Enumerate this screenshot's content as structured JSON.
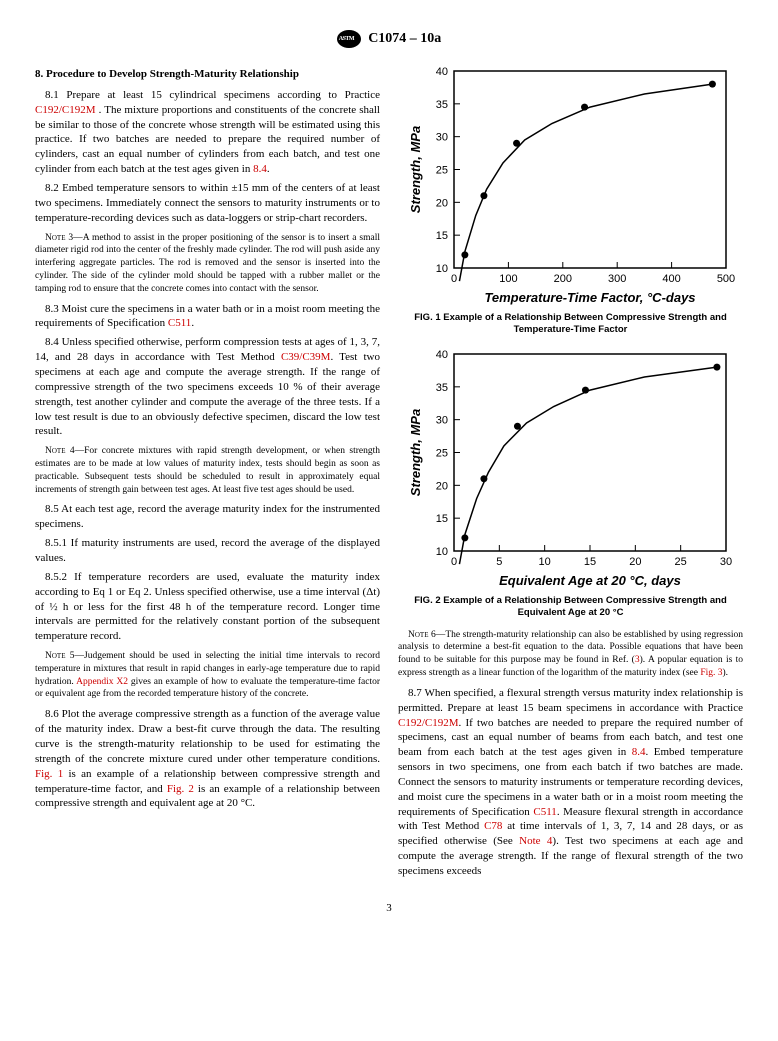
{
  "header": {
    "designation": "C1074 – 10a"
  },
  "left": {
    "section_title": "8.  Procedure to Develop Strength-Maturity Relationship",
    "p81a": "8.1 Prepare at least 15 cylindrical specimens according to Practice ",
    "p81_link": "C192/C192M",
    "p81b": " . The mixture proportions and constituents of the concrete shall be similar to those of the concrete whose strength will be estimated using this practice. If two batches are needed to prepare the required number of cylinders, cast an equal number of cylinders from each batch, and test one cylinder from each batch at the test ages given in ",
    "p81_link2": "8.4",
    "p81c": ".",
    "p82": "8.2 Embed temperature sensors to within ±15 mm of the centers of at least two specimens. Immediately connect the sensors to maturity instruments or to temperature-recording devices such as data-loggers or strip-chart recorders.",
    "note3_label": "Note 3—",
    "note3": "A method to assist in the proper positioning of the sensor is to insert a small diameter rigid rod into the center of the freshly made cylinder. The rod will push aside any interfering aggregate particles. The rod is removed and the sensor is inserted into the cylinder. The side of the cylinder mold should be tapped with a rubber mallet or the tamping rod to ensure that the concrete comes into contact with the sensor.",
    "p83a": "8.3 Moist cure the specimens in a water bath or in a moist room meeting the requirements of Specification ",
    "p83_link": "C511",
    "p83b": ".",
    "p84a": "8.4 Unless specified otherwise, perform compression tests at ages of 1, 3, 7, 14, and 28 days in accordance with Test Method ",
    "p84_link": "C39/C39M",
    "p84b": ". Test two specimens at each age and compute the average strength. If the range of compressive strength of the two specimens exceeds 10 % of their average strength, test another cylinder and compute the average of the three tests. If a low test result is due to an obviously defective specimen, discard the low test result.",
    "note4_label": "Note 4—",
    "note4": "For concrete mixtures with rapid strength development, or when strength estimates are to be made at low values of maturity index, tests should begin as soon as practicable. Subsequent tests should be scheduled to result in approximately equal increments of strength gain between test ages. At least five test ages should be used.",
    "p85": "8.5 At each test age, record the average maturity index for the instrumented specimens.",
    "p851": "8.5.1 If maturity instruments are used, record the average of the displayed values.",
    "p852": "8.5.2 If temperature recorders are used, evaluate the maturity index according to Eq 1 or Eq 2. Unless specified otherwise, use a time interval (Δt) of ½ h or less for the first 48 h of the temperature record. Longer time intervals are permitted for the relatively constant portion of the subsequent temperature record.",
    "note5_label": "Note 5—",
    "note5a": "Judgement should be used in selecting the initial time intervals to record temperature in mixtures that result in rapid changes in early-age temperature due to rapid hydration. ",
    "note5_link": "Appendix X2",
    "note5b": " gives an example of how to evaluate the temperature-time factor or equivalent age from the recorded temperature history of the concrete.",
    "p86a": "8.6 Plot the average compressive strength as a function of the average value of the maturity index. Draw a best-fit curve through the data. The resulting curve is the strength-maturity relationship to be used for estimating the strength of the concrete mixture cured under other temperature conditions. ",
    "p86_link1": "Fig. 1",
    "p86b": " is an example of a relationship between compressive strength and temperature-time factor, and ",
    "p86_link2": "Fig. 2",
    "p86c": " is an example of a relationship between compressive strength and equivalent age at 20 °C."
  },
  "fig1": {
    "type": "scatter-line",
    "xlabel": "Temperature-Time Factor, °C-days",
    "ylabel": "Strength, MPa",
    "xlim": [
      0,
      500
    ],
    "ylim": [
      10,
      40
    ],
    "xticks": [
      0,
      100,
      200,
      300,
      400,
      500
    ],
    "yticks": [
      10,
      15,
      20,
      25,
      30,
      35,
      40
    ],
    "points": [
      {
        "x": 20,
        "y": 12
      },
      {
        "x": 55,
        "y": 21
      },
      {
        "x": 115,
        "y": 29
      },
      {
        "x": 240,
        "y": 34.5
      },
      {
        "x": 475,
        "y": 38
      }
    ],
    "curve": [
      {
        "x": 10,
        "y": 8
      },
      {
        "x": 20,
        "y": 12.5
      },
      {
        "x": 40,
        "y": 18
      },
      {
        "x": 60,
        "y": 22
      },
      {
        "x": 90,
        "y": 26
      },
      {
        "x": 130,
        "y": 29.5
      },
      {
        "x": 180,
        "y": 32
      },
      {
        "x": 250,
        "y": 34.5
      },
      {
        "x": 350,
        "y": 36.5
      },
      {
        "x": 475,
        "y": 38
      }
    ],
    "line_color": "#000000",
    "marker_color": "#000000",
    "marker_radius": 3.5,
    "line_width": 1.5,
    "tick_font_size": 11,
    "label_font_size": 13,
    "caption": "FIG. 1 Example of a Relationship Between Compressive Strength and Temperature-Time Factor"
  },
  "fig2": {
    "type": "scatter-line",
    "xlabel": "Equivalent Age at 20 °C, days",
    "ylabel": "Strength, MPa",
    "xlim": [
      0,
      30
    ],
    "ylim": [
      10,
      40
    ],
    "xticks": [
      0,
      5,
      10,
      15,
      20,
      25,
      30
    ],
    "yticks": [
      10,
      15,
      20,
      25,
      30,
      35,
      40
    ],
    "points": [
      {
        "x": 1.2,
        "y": 12
      },
      {
        "x": 3.3,
        "y": 21
      },
      {
        "x": 7,
        "y": 29
      },
      {
        "x": 14.5,
        "y": 34.5
      },
      {
        "x": 29,
        "y": 38
      }
    ],
    "curve": [
      {
        "x": 0.6,
        "y": 8
      },
      {
        "x": 1.2,
        "y": 12.5
      },
      {
        "x": 2.5,
        "y": 18
      },
      {
        "x": 3.8,
        "y": 22
      },
      {
        "x": 5.5,
        "y": 26
      },
      {
        "x": 8,
        "y": 29.5
      },
      {
        "x": 11,
        "y": 32
      },
      {
        "x": 15,
        "y": 34.5
      },
      {
        "x": 21,
        "y": 36.5
      },
      {
        "x": 29,
        "y": 38
      }
    ],
    "line_color": "#000000",
    "marker_color": "#000000",
    "marker_radius": 3.5,
    "line_width": 1.5,
    "tick_font_size": 11,
    "label_font_size": 13,
    "caption": "FIG. 2 Example of a Relationship Between Compressive Strength and Equivalent Age at 20 °C"
  },
  "right": {
    "note6_label": "Note 6—",
    "note6a": "The strength-maturity relationship can also be established by using regression analysis to determine a best-fit equation to the data. Possible equations that have been found to be suitable for this purpose may be found in Ref. (",
    "note6_ref": "3",
    "note6b": "). A popular equation is to express strength as a linear function of the logarithm of the maturity index (see ",
    "note6_link": "Fig. 3",
    "note6c": ").",
    "p87a": "8.7 When specified, a flexural strength versus maturity index relationship is permitted. Prepare at least 15 beam specimens in accordance with Practice ",
    "p87_link1": "C192/C192M",
    "p87b": ". If two batches are needed to prepare the required number of specimens, cast an equal number of beams from each batch, and test one beam from each batch at the test ages given in ",
    "p87_link2": "8.4",
    "p87c": ". Embed temperature sensors in two specimens, one from each batch if two batches are made. Connect the sensors to maturity instruments or temperature recording devices, and moist cure the specimens in a water bath or in a moist room meeting the requirements of Specification ",
    "p87_link3": "C511",
    "p87d": ". Measure flexural strength in accordance with Test Method ",
    "p87_link4": "C78",
    "p87e": " at time intervals of 1, 3, 7, 14 and 28 days, or as specified otherwise (See ",
    "p87_link5": "Note 4",
    "p87f": "). Test two specimens at each age and compute the average strength. If the range of flexural strength of the two specimens exceeds"
  },
  "pagenum": "3"
}
